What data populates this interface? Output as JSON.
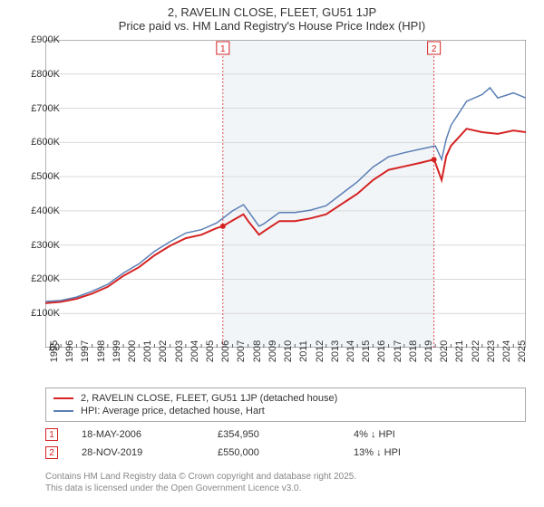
{
  "title": "2, RAVELIN CLOSE, FLEET, GU51 1JP",
  "subtitle": "Price paid vs. HM Land Registry's House Price Index (HPI)",
  "chart": {
    "type": "line",
    "background_color": "#ffffff",
    "shade_color": "#f2f5f8",
    "shade_start_year": 2006.38,
    "shade_end_year": 2019.91,
    "grid_color": "#d9d9d9",
    "axis_color": "#666",
    "x": {
      "min": 1995,
      "max": 2025.8,
      "ticks": [
        1995,
        1996,
        1997,
        1998,
        1999,
        2000,
        2001,
        2002,
        2003,
        2004,
        2005,
        2006,
        2007,
        2008,
        2009,
        2010,
        2011,
        2012,
        2013,
        2014,
        2015,
        2016,
        2017,
        2018,
        2019,
        2020,
        2021,
        2022,
        2023,
        2024,
        2025
      ]
    },
    "y": {
      "min": 0,
      "max": 900000,
      "ticks": [
        0,
        100000,
        200000,
        300000,
        400000,
        500000,
        600000,
        700000,
        800000,
        900000
      ],
      "labels": [
        "£0",
        "£100K",
        "£200K",
        "£300K",
        "£400K",
        "£500K",
        "£600K",
        "£700K",
        "£800K",
        "£900K"
      ]
    },
    "series": [
      {
        "name": "2, RAVELIN CLOSE, FLEET, GU51 1JP (detached house)",
        "color": "#d52323",
        "line_width": 2,
        "points": [
          [
            1995,
            130000
          ],
          [
            1996,
            134000
          ],
          [
            1997,
            143000
          ],
          [
            1998,
            158000
          ],
          [
            1999,
            178000
          ],
          [
            2000,
            210000
          ],
          [
            2001,
            235000
          ],
          [
            2002,
            270000
          ],
          [
            2003,
            298000
          ],
          [
            2004,
            320000
          ],
          [
            2005,
            330000
          ],
          [
            2006,
            350000
          ],
          [
            2006.38,
            354950
          ],
          [
            2007,
            372000
          ],
          [
            2007.7,
            390000
          ],
          [
            2008,
            370000
          ],
          [
            2008.7,
            330000
          ],
          [
            2009,
            340000
          ],
          [
            2010,
            370000
          ],
          [
            2011,
            370000
          ],
          [
            2012,
            378000
          ],
          [
            2013,
            390000
          ],
          [
            2014,
            420000
          ],
          [
            2015,
            450000
          ],
          [
            2016,
            490000
          ],
          [
            2017,
            520000
          ],
          [
            2018,
            530000
          ],
          [
            2019,
            540000
          ],
          [
            2019.91,
            550000
          ],
          [
            2020,
            540000
          ],
          [
            2020.4,
            490000
          ],
          [
            2020.7,
            560000
          ],
          [
            2021,
            590000
          ],
          [
            2022,
            640000
          ],
          [
            2023,
            630000
          ],
          [
            2024,
            625000
          ],
          [
            2025,
            635000
          ],
          [
            2025.8,
            630000
          ]
        ],
        "markers": [
          {
            "idx": "1",
            "x": 2006.38,
            "y": 354950
          },
          {
            "idx": "2",
            "x": 2019.91,
            "y": 550000
          }
        ]
      },
      {
        "name": "HPI: Average price, detached house, Hart",
        "color": "#5b7fb5",
        "line_width": 1.5,
        "points": [
          [
            1995,
            135000
          ],
          [
            1996,
            138000
          ],
          [
            1997,
            148000
          ],
          [
            1998,
            165000
          ],
          [
            1999,
            185000
          ],
          [
            2000,
            218000
          ],
          [
            2001,
            245000
          ],
          [
            2002,
            282000
          ],
          [
            2003,
            310000
          ],
          [
            2004,
            335000
          ],
          [
            2005,
            345000
          ],
          [
            2006,
            365000
          ],
          [
            2007,
            400000
          ],
          [
            2007.7,
            418000
          ],
          [
            2008,
            400000
          ],
          [
            2008.7,
            355000
          ],
          [
            2009,
            362000
          ],
          [
            2010,
            395000
          ],
          [
            2011,
            395000
          ],
          [
            2012,
            402000
          ],
          [
            2013,
            415000
          ],
          [
            2014,
            450000
          ],
          [
            2015,
            485000
          ],
          [
            2016,
            528000
          ],
          [
            2017,
            558000
          ],
          [
            2018,
            570000
          ],
          [
            2019,
            580000
          ],
          [
            2020,
            590000
          ],
          [
            2020.4,
            550000
          ],
          [
            2020.7,
            610000
          ],
          [
            2021,
            650000
          ],
          [
            2022,
            720000
          ],
          [
            2023,
            740000
          ],
          [
            2023.5,
            760000
          ],
          [
            2024,
            730000
          ],
          [
            2025,
            745000
          ],
          [
            2025.8,
            730000
          ]
        ]
      }
    ],
    "vmarkers": [
      {
        "idx": "1",
        "x": 2006.38,
        "color": "#d52323"
      },
      {
        "idx": "2",
        "x": 2019.91,
        "color": "#d52323"
      }
    ]
  },
  "legend": {
    "rows": [
      {
        "color": "#d52323",
        "width": 2,
        "label": "2, RAVELIN CLOSE, FLEET, GU51 1JP (detached house)"
      },
      {
        "color": "#5b7fb5",
        "width": 1.5,
        "label": "HPI: Average price, detached house, Hart"
      }
    ]
  },
  "marker_rows": [
    {
      "idx": "1",
      "color": "#d52323",
      "date": "18-MAY-2006",
      "price": "£354,950",
      "pct": "4% ↓ HPI"
    },
    {
      "idx": "2",
      "color": "#d52323",
      "date": "28-NOV-2019",
      "price": "£550,000",
      "pct": "13% ↓ HPI"
    }
  ],
  "footer_line1": "Contains HM Land Registry data © Crown copyright and database right 2025.",
  "footer_line2": "This data is licensed under the Open Government Licence v3.0."
}
